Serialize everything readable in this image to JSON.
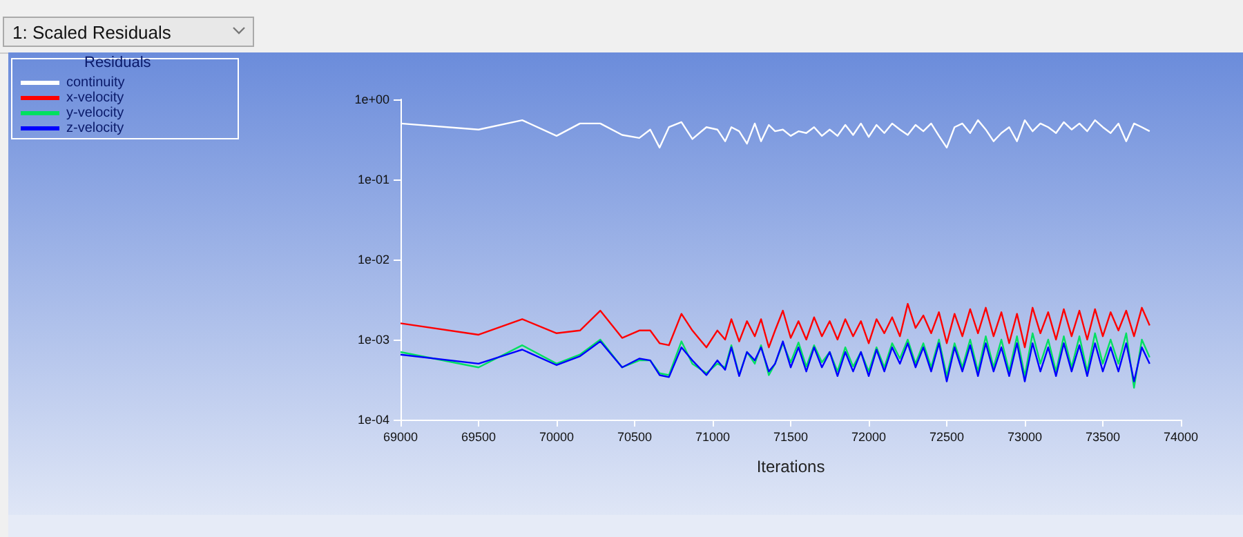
{
  "chart_data": {
    "type": "line",
    "title": "1: Scaled Residuals",
    "xlabel": "Iterations",
    "legend_title": "Residuals",
    "legend": "top left",
    "grid": false,
    "log": "y",
    "marker": "none",
    "line_style": "solid",
    "x": [
      69000,
      69500,
      69780,
      70000,
      70150,
      70280,
      70420,
      70530,
      70600,
      70660,
      70720,
      70800,
      70870,
      70960,
      71030,
      71080,
      71120,
      71170,
      71220,
      71270,
      71310,
      71360,
      71400,
      71450,
      71500,
      71550,
      71600,
      71650,
      71700,
      71750,
      71800,
      71850,
      71900,
      71950,
      72000,
      72050,
      72100,
      72150,
      72200,
      72250,
      72300,
      72350,
      72400,
      72450,
      72500,
      72550,
      72600,
      72650,
      72700,
      72750,
      72800,
      72850,
      72900,
      72950,
      73000,
      73050,
      73100,
      73150,
      73200,
      73250,
      73300,
      73350,
      73400,
      73450,
      73500,
      73550,
      73600,
      73650,
      73700,
      73750,
      73800
    ],
    "xlim": [
      69000,
      74000
    ],
    "xticks": [
      69000,
      69500,
      70000,
      70500,
      71000,
      71500,
      72000,
      72500,
      73000,
      73500,
      74000
    ],
    "ylim": [
      0.0001,
      1
    ],
    "yticks": [
      {
        "value": 1,
        "label": "1e+00"
      },
      {
        "value": 0.1,
        "label": "1e-01"
      },
      {
        "value": 0.01,
        "label": "1e-02"
      },
      {
        "value": 0.001,
        "label": "1e-03"
      },
      {
        "value": 0.0001,
        "label": "1e-04"
      }
    ],
    "series": [
      {
        "name": "continuity",
        "color": "#ffffff",
        "values": [
          0.5,
          0.42,
          0.55,
          0.35,
          0.5,
          0.5,
          0.36,
          0.33,
          0.42,
          0.25,
          0.45,
          0.52,
          0.32,
          0.45,
          0.42,
          0.3,
          0.45,
          0.4,
          0.28,
          0.5,
          0.3,
          0.48,
          0.4,
          0.42,
          0.35,
          0.4,
          0.38,
          0.45,
          0.35,
          0.42,
          0.35,
          0.48,
          0.36,
          0.5,
          0.34,
          0.48,
          0.38,
          0.5,
          0.42,
          0.36,
          0.48,
          0.4,
          0.5,
          0.35,
          0.25,
          0.45,
          0.5,
          0.38,
          0.55,
          0.42,
          0.3,
          0.38,
          0.45,
          0.3,
          0.55,
          0.4,
          0.5,
          0.45,
          0.38,
          0.52,
          0.42,
          0.5,
          0.4,
          0.55,
          0.45,
          0.38,
          0.5,
          0.3,
          0.5,
          0.45,
          0.4
        ]
      },
      {
        "name": "x-velocity",
        "color": "#ff0000",
        "values": [
          0.0016,
          0.00115,
          0.0018,
          0.0012,
          0.0013,
          0.0023,
          0.00105,
          0.0013,
          0.0013,
          0.0009,
          0.00085,
          0.0021,
          0.0013,
          0.0008,
          0.0013,
          0.001,
          0.0018,
          0.00095,
          0.0017,
          0.0011,
          0.0018,
          0.0008,
          0.0013,
          0.0023,
          0.00105,
          0.0017,
          0.001,
          0.0019,
          0.0011,
          0.0017,
          0.001,
          0.0018,
          0.0011,
          0.0017,
          0.0009,
          0.0018,
          0.0012,
          0.0019,
          0.0011,
          0.0028,
          0.0014,
          0.002,
          0.0012,
          0.0022,
          0.0009,
          0.0021,
          0.0011,
          0.0024,
          0.0012,
          0.0025,
          0.0011,
          0.0022,
          0.0009,
          0.0021,
          0.0008,
          0.0025,
          0.0012,
          0.0022,
          0.001,
          0.0024,
          0.0011,
          0.0023,
          0.001,
          0.0024,
          0.0011,
          0.0022,
          0.0013,
          0.0023,
          0.0011,
          0.0025,
          0.0015
        ]
      },
      {
        "name": "y-velocity",
        "color": "#00e060",
        "values": [
          0.0007,
          0.00045,
          0.00085,
          0.0005,
          0.00065,
          0.001,
          0.00045,
          0.00055,
          0.00055,
          0.00038,
          0.00036,
          0.00095,
          0.0005,
          0.00038,
          0.0005,
          0.00045,
          0.00085,
          0.00036,
          0.0007,
          0.0005,
          0.00085,
          0.00036,
          0.0005,
          0.0009,
          0.00052,
          0.00092,
          0.00046,
          0.00085,
          0.00052,
          0.0007,
          0.0004,
          0.0008,
          0.00046,
          0.0007,
          0.0004,
          0.0008,
          0.00045,
          0.0009,
          0.00058,
          0.001,
          0.0005,
          0.0009,
          0.00045,
          0.001,
          0.00035,
          0.0009,
          0.00045,
          0.001,
          0.0004,
          0.0011,
          0.00045,
          0.001,
          0.0004,
          0.0011,
          0.00035,
          0.0012,
          0.0005,
          0.001,
          0.0004,
          0.0011,
          0.00045,
          0.0011,
          0.0004,
          0.0012,
          0.0005,
          0.001,
          0.0005,
          0.0012,
          0.00025,
          0.001,
          0.0006
        ]
      },
      {
        "name": "z-velocity",
        "color": "#0000ff",
        "values": [
          0.00065,
          0.0005,
          0.00075,
          0.00048,
          0.00062,
          0.00095,
          0.00045,
          0.00058,
          0.00055,
          0.00036,
          0.00034,
          0.0008,
          0.00055,
          0.00036,
          0.00055,
          0.00042,
          0.0008,
          0.00035,
          0.0007,
          0.00055,
          0.0008,
          0.0004,
          0.0005,
          0.00095,
          0.00045,
          0.0008,
          0.0004,
          0.0008,
          0.00045,
          0.0007,
          0.00035,
          0.0007,
          0.0004,
          0.0007,
          0.00035,
          0.00075,
          0.0004,
          0.0008,
          0.0005,
          0.0009,
          0.00045,
          0.0008,
          0.0004,
          0.0009,
          0.0003,
          0.0008,
          0.0004,
          0.00085,
          0.00035,
          0.0009,
          0.0004,
          0.0008,
          0.00035,
          0.0009,
          0.0003,
          0.0009,
          0.0004,
          0.0008,
          0.00035,
          0.0009,
          0.0004,
          0.00085,
          0.00035,
          0.0009,
          0.0004,
          0.0008,
          0.0004,
          0.0009,
          0.0003,
          0.0008,
          0.0005
        ]
      }
    ]
  }
}
